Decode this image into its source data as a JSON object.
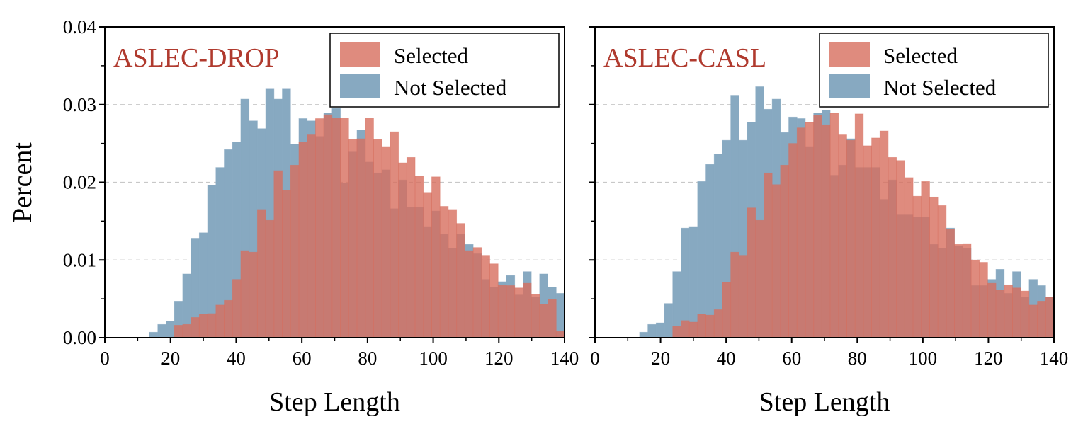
{
  "colors": {
    "selected": "#d76e5e",
    "not_selected": "#87a9c1",
    "title": "#b03a2e",
    "grid": "#c8c8c8"
  },
  "chart_data": [
    {
      "type": "bar",
      "title": "ASLEC-DROP",
      "xlabel": "Step Length",
      "ylabel": "Percent",
      "xlim": [
        0,
        140
      ],
      "ylim": [
        0,
        0.04
      ],
      "xticks": [
        "0",
        "20",
        "40",
        "60",
        "80",
        "100",
        "120",
        "140"
      ],
      "yticks": [
        "0.00",
        "0.01",
        "0.02",
        "0.03",
        "0.04"
      ],
      "grid": "horizontal dashed",
      "legend": "top-right",
      "bin_start": 13.6,
      "bin_width": 2.528,
      "series": [
        {
          "name": "Not Selected",
          "values": [
            0.0007,
            0.0017,
            0.0021,
            0.0047,
            0.0082,
            0.0128,
            0.0135,
            0.0196,
            0.0219,
            0.0242,
            0.0252,
            0.0307,
            0.0279,
            0.0269,
            0.032,
            0.0307,
            0.032,
            0.0249,
            0.0282,
            0.0279,
            0.0259,
            0.0289,
            0.0295,
            0.0199,
            0.0239,
            0.0267,
            0.0226,
            0.0212,
            0.0216,
            0.0166,
            0.0203,
            0.0168,
            0.0168,
            0.0143,
            0.0163,
            0.0133,
            0.0115,
            0.0133,
            0.012,
            0.0108,
            0.0075,
            0.0065,
            0.0072,
            0.008,
            0.0055,
            0.0085,
            0.0052,
            0.0082,
            0.0065,
            0.0057
          ]
        },
        {
          "name": "Selected",
          "values": [
            0,
            0,
            0,
            0.0016,
            0.0017,
            0.0026,
            0.003,
            0.0031,
            0.0042,
            0.0048,
            0.0075,
            0.0112,
            0.011,
            0.0165,
            0.0151,
            0.0215,
            0.019,
            0.0222,
            0.0252,
            0.0261,
            0.0282,
            0.0287,
            0.0283,
            0.0283,
            0.0255,
            0.0256,
            0.0283,
            0.0255,
            0.0246,
            0.0265,
            0.0225,
            0.0232,
            0.0208,
            0.0187,
            0.0207,
            0.0169,
            0.0165,
            0.0147,
            0.0112,
            0.0116,
            0.0106,
            0.0095,
            0.0068,
            0.0067,
            0.0064,
            0.007,
            0.0056,
            0.0043,
            0.0049,
            0.0008
          ]
        }
      ]
    },
    {
      "type": "bar",
      "title": "ASLEC-CASL",
      "xlabel": "Step Length",
      "ylabel": "",
      "xlim": [
        0,
        140
      ],
      "ylim": [
        0,
        0.04
      ],
      "xticks": [
        "0",
        "20",
        "40",
        "60",
        "80",
        "100",
        "120",
        "140"
      ],
      "yticks": [],
      "grid": "horizontal dashed",
      "legend": "top-right",
      "bin_start": 13.6,
      "bin_width": 2.528,
      "series": [
        {
          "name": "Not Selected",
          "values": [
            0.0007,
            0.0017,
            0.0019,
            0.0044,
            0.0085,
            0.0141,
            0.0143,
            0.0201,
            0.0223,
            0.0236,
            0.0254,
            0.0312,
            0.0254,
            0.0277,
            0.0323,
            0.0294,
            0.0307,
            0.0264,
            0.0284,
            0.0282,
            0.0246,
            0.0289,
            0.0293,
            0.0209,
            0.0222,
            0.0256,
            0.0219,
            0.0219,
            0.0219,
            0.0178,
            0.0203,
            0.0158,
            0.0158,
            0.0155,
            0.0155,
            0.012,
            0.0115,
            0.0141,
            0.0118,
            0.0115,
            0.0067,
            0.0067,
            0.0075,
            0.0088,
            0.0057,
            0.0085,
            0.0052,
            0.0075,
            0.0067,
            0.0052
          ]
        },
        {
          "name": "Selected",
          "values": [
            0,
            0,
            0,
            0,
            0.0015,
            0.0022,
            0.002,
            0.003,
            0.0029,
            0.0036,
            0.0071,
            0.011,
            0.0106,
            0.0167,
            0.0151,
            0.0212,
            0.0197,
            0.0222,
            0.025,
            0.027,
            0.0277,
            0.0286,
            0.0274,
            0.0289,
            0.0261,
            0.0254,
            0.0288,
            0.0247,
            0.0257,
            0.0266,
            0.0232,
            0.0228,
            0.0206,
            0.0182,
            0.0201,
            0.0181,
            0.017,
            0.014,
            0.012,
            0.0121,
            0.01,
            0.0097,
            0.007,
            0.0061,
            0.0068,
            0.0064,
            0.006,
            0.0042,
            0.0047,
            0.0052
          ]
        }
      ]
    }
  ]
}
